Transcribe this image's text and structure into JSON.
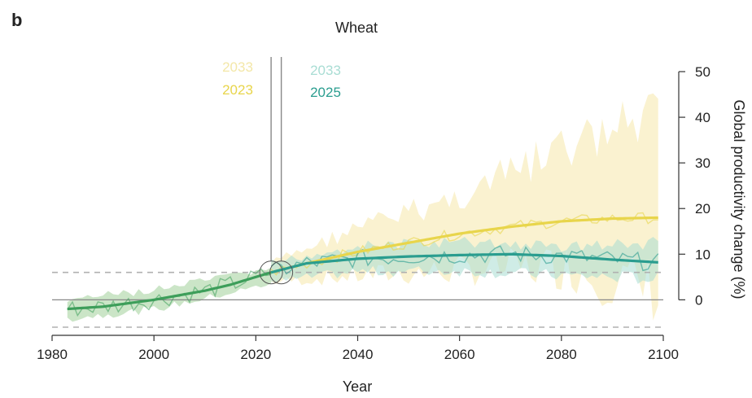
{
  "panel_letter": "b",
  "colors": {
    "yellow": "#e8d54b",
    "yellow_band": "#f8eec0",
    "teal": "#2a9d8f",
    "teal_band": "#a8dcd2",
    "green": "#3d9e5a",
    "green_band": "#b9dcb4",
    "axis": "#333333",
    "zero_line": "#888888",
    "dashed": "#b0b0b0",
    "marker_line": "#888888"
  },
  "chart_data": {
    "type": "line",
    "title": "Wheat",
    "xlabel": "Year",
    "ylabel": "Global productivity change (%)",
    "xlim": [
      1980,
      2100
    ],
    "ylim": [
      -6,
      50
    ],
    "x_ticks": [
      1980,
      2000,
      2020,
      2040,
      2060,
      2080,
      2100
    ],
    "y_ticks": [
      0,
      10,
      20,
      30,
      40,
      50
    ],
    "reference_lines": {
      "zero": 0,
      "dashed_upper": 6,
      "dashed_lower": -6
    },
    "historical": {
      "x": [
        1983,
        1990,
        2000,
        2010,
        2015,
        2020,
        2023
      ],
      "mean": [
        -2,
        -1.5,
        0,
        2,
        3.3,
        5,
        6
      ]
    },
    "series": [
      {
        "x": [
          2023,
          2030,
          2040,
          2050,
          2060,
          2070,
          2080,
          2090,
          2099
        ],
        "values": [
          6,
          8,
          10.5,
          12.5,
          14.5,
          16,
          17.2,
          17.8,
          18
        ]
      },
      {
        "x": [
          2023,
          2030,
          2040,
          2050,
          2060,
          2070,
          2080,
          2090,
          2099
        ],
        "values": [
          6,
          8,
          9,
          9.5,
          9.8,
          10,
          9.6,
          8.8,
          8.2
        ]
      }
    ],
    "uncertainty_bands": [
      {
        "x": [
          2023,
          2040,
          2060,
          2080,
          2099
        ],
        "lower": [
          3,
          3,
          3,
          2,
          -6
        ],
        "upper": [
          9,
          18,
          26,
          38,
          47
        ]
      },
      {
        "x": [
          2023,
          2040,
          2060,
          2080,
          2099
        ],
        "lower": [
          3,
          5,
          5,
          4,
          3
        ],
        "upper": [
          9,
          13,
          14,
          13,
          14
        ]
      },
      {
        "x": [
          1983,
          2000,
          2020,
          2023
        ],
        "lower": [
          -5,
          -3,
          2,
          3
        ],
        "upper": [
          1,
          3,
          7,
          8
        ]
      }
    ],
    "emergence_markers": [
      {
        "year": 2023,
        "value": 6
      },
      {
        "year": 2025,
        "value": 6
      }
    ],
    "annotations": [
      {
        "text": "2033",
        "color": "yellow_faded"
      },
      {
        "text": "2023",
        "color": "yellow"
      },
      {
        "text": "2033",
        "color": "teal_faded"
      },
      {
        "text": "2025",
        "color": "teal"
      }
    ]
  }
}
